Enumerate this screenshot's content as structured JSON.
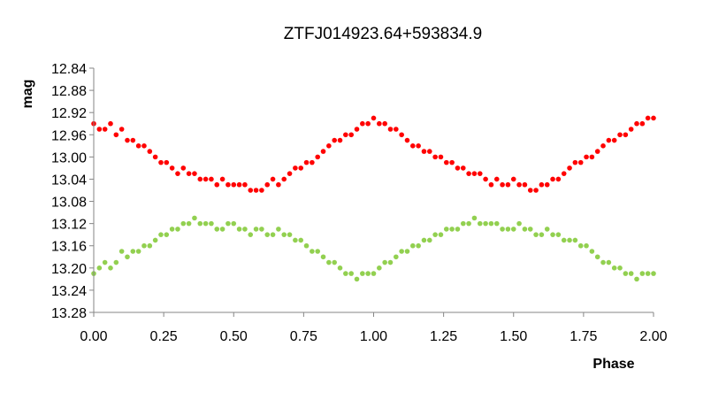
{
  "chart_data": {
    "type": "scatter",
    "title": "ZTFJ014923.64+593834.9",
    "xlabel": "Phase",
    "ylabel": "mag",
    "xlim": [
      0.0,
      2.0
    ],
    "ylim": [
      12.84,
      13.28
    ],
    "y_inverted": true,
    "x_ticks": [
      "0.00",
      "0.25",
      "0.50",
      "0.75",
      "1.00",
      "1.25",
      "1.50",
      "1.75",
      "2.00"
    ],
    "y_ticks": [
      "12.84",
      "12.88",
      "12.92",
      "12.96",
      "13.00",
      "13.04",
      "13.08",
      "13.12",
      "13.16",
      "13.20",
      "13.24",
      "13.28"
    ],
    "grid": false,
    "legend": "none",
    "series": [
      {
        "color": "#ff0000",
        "x": [
          0.0,
          0.02,
          0.04,
          0.06,
          0.08,
          0.1,
          0.12,
          0.14,
          0.16,
          0.18,
          0.2,
          0.22,
          0.24,
          0.26,
          0.28,
          0.3,
          0.32,
          0.34,
          0.36,
          0.38,
          0.4,
          0.42,
          0.44,
          0.46,
          0.48,
          0.5,
          0.52,
          0.54,
          0.56,
          0.58,
          0.6,
          0.62,
          0.64,
          0.66,
          0.68,
          0.7,
          0.72,
          0.74,
          0.76,
          0.78,
          0.8,
          0.82,
          0.84,
          0.86,
          0.88,
          0.9,
          0.92,
          0.94,
          0.96,
          0.98,
          1.0,
          1.02,
          1.04,
          1.06,
          1.08,
          1.1,
          1.12,
          1.14,
          1.16,
          1.18,
          1.2,
          1.22,
          1.24,
          1.26,
          1.28,
          1.3,
          1.32,
          1.34,
          1.36,
          1.38,
          1.4,
          1.42,
          1.44,
          1.46,
          1.48,
          1.5,
          1.52,
          1.54,
          1.56,
          1.58,
          1.6,
          1.62,
          1.64,
          1.66,
          1.68,
          1.7,
          1.72,
          1.74,
          1.76,
          1.78,
          1.8,
          1.82,
          1.84,
          1.86,
          1.88,
          1.9,
          1.92,
          1.94,
          1.96,
          1.98,
          2.0
        ],
        "y": [
          12.94,
          12.95,
          12.95,
          12.94,
          12.96,
          12.95,
          12.97,
          12.97,
          12.98,
          12.98,
          12.99,
          13.0,
          13.01,
          13.01,
          13.02,
          13.03,
          13.02,
          13.03,
          13.03,
          13.04,
          13.04,
          13.04,
          13.05,
          13.04,
          13.05,
          13.05,
          13.05,
          13.05,
          13.06,
          13.06,
          13.06,
          13.05,
          13.04,
          13.05,
          13.04,
          13.03,
          13.02,
          13.02,
          13.01,
          13.01,
          13.0,
          12.99,
          12.98,
          12.97,
          12.97,
          12.96,
          12.96,
          12.95,
          12.94,
          12.94,
          12.93,
          12.94,
          12.94,
          12.95,
          12.95,
          12.96,
          12.97,
          12.98,
          12.98,
          12.99,
          12.99,
          13.0,
          13.0,
          13.01,
          13.01,
          13.02,
          13.02,
          13.03,
          13.03,
          13.03,
          13.04,
          13.05,
          13.04,
          13.05,
          13.05,
          13.04,
          13.05,
          13.05,
          13.06,
          13.06,
          13.05,
          13.05,
          13.04,
          13.04,
          13.03,
          13.02,
          13.01,
          13.01,
          13.0,
          13.0,
          12.99,
          12.98,
          12.97,
          12.97,
          12.96,
          12.96,
          12.95,
          12.94,
          12.94,
          12.93,
          12.93
        ]
      },
      {
        "color": "#92d050",
        "x": [
          0.0,
          0.02,
          0.04,
          0.06,
          0.08,
          0.1,
          0.12,
          0.14,
          0.16,
          0.18,
          0.2,
          0.22,
          0.24,
          0.26,
          0.28,
          0.3,
          0.32,
          0.34,
          0.36,
          0.38,
          0.4,
          0.42,
          0.44,
          0.46,
          0.48,
          0.5,
          0.52,
          0.54,
          0.56,
          0.58,
          0.6,
          0.62,
          0.64,
          0.66,
          0.68,
          0.7,
          0.72,
          0.74,
          0.76,
          0.78,
          0.8,
          0.82,
          0.84,
          0.86,
          0.88,
          0.9,
          0.92,
          0.94,
          0.96,
          0.98,
          1.0,
          1.02,
          1.04,
          1.06,
          1.08,
          1.1,
          1.12,
          1.14,
          1.16,
          1.18,
          1.2,
          1.22,
          1.24,
          1.26,
          1.28,
          1.3,
          1.32,
          1.34,
          1.36,
          1.38,
          1.4,
          1.42,
          1.44,
          1.46,
          1.48,
          1.5,
          1.52,
          1.54,
          1.56,
          1.58,
          1.6,
          1.62,
          1.64,
          1.66,
          1.68,
          1.7,
          1.72,
          1.74,
          1.76,
          1.78,
          1.8,
          1.82,
          1.84,
          1.86,
          1.88,
          1.9,
          1.92,
          1.94,
          1.96,
          1.98,
          2.0
        ],
        "y": [
          13.21,
          13.2,
          13.19,
          13.2,
          13.19,
          13.17,
          13.18,
          13.17,
          13.17,
          13.16,
          13.16,
          13.15,
          13.14,
          13.14,
          13.13,
          13.13,
          13.12,
          13.12,
          13.11,
          13.12,
          13.12,
          13.12,
          13.13,
          13.13,
          13.12,
          13.12,
          13.13,
          13.13,
          13.14,
          13.13,
          13.13,
          13.14,
          13.14,
          13.13,
          13.14,
          13.14,
          13.15,
          13.15,
          13.16,
          13.17,
          13.17,
          13.18,
          13.19,
          13.19,
          13.2,
          13.21,
          13.21,
          13.22,
          13.21,
          13.21,
          13.21,
          13.2,
          13.19,
          13.19,
          13.18,
          13.17,
          13.17,
          13.16,
          13.16,
          13.15,
          13.15,
          13.14,
          13.14,
          13.13,
          13.13,
          13.13,
          13.12,
          13.12,
          13.11,
          13.12,
          13.12,
          13.12,
          13.12,
          13.13,
          13.13,
          13.13,
          13.12,
          13.13,
          13.13,
          13.14,
          13.14,
          13.13,
          13.14,
          13.14,
          13.15,
          13.15,
          13.15,
          13.16,
          13.16,
          13.17,
          13.18,
          13.19,
          13.19,
          13.2,
          13.2,
          13.21,
          13.21,
          13.22,
          13.21,
          13.21,
          13.21
        ]
      }
    ]
  }
}
